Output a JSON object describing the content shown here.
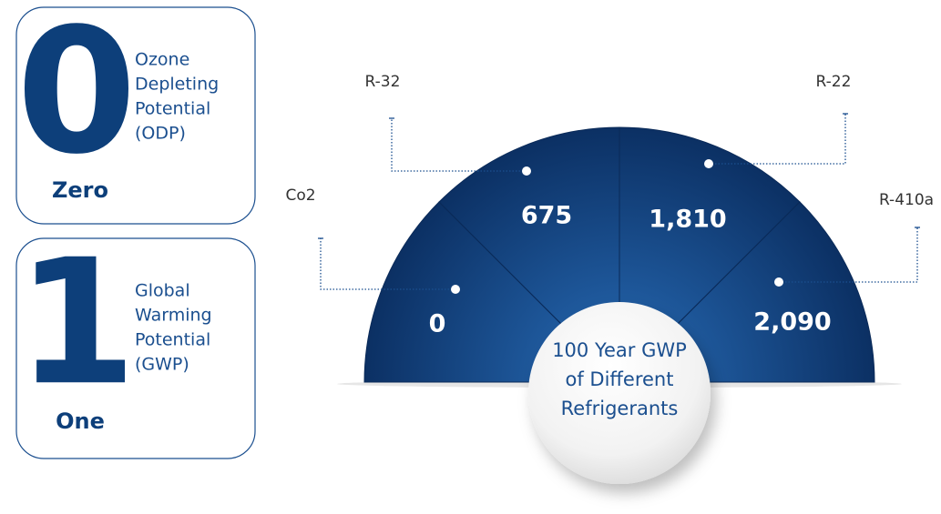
{
  "cards": [
    {
      "digit": "0",
      "word": "Zero",
      "lines": [
        "Ozone",
        "Depleting",
        "Potential",
        "(ODP)"
      ]
    },
    {
      "digit": "1",
      "word": "One",
      "lines": [
        "Global",
        "Warming",
        "Potential",
        "(GWP)"
      ]
    }
  ],
  "segments": [
    {
      "name": "Co2",
      "value": "0"
    },
    {
      "name": "R-32",
      "value": "675"
    },
    {
      "name": "R-22",
      "value": "1,810"
    },
    {
      "name": "R-410a",
      "value": "2,090"
    }
  ],
  "center": [
    "100 Year GWP",
    "of Different",
    "Refrigerants"
  ]
}
